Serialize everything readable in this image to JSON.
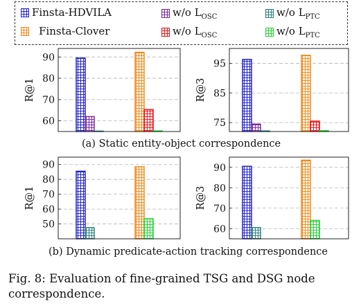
{
  "legend": {
    "items": [
      {
        "label": "Finsta-HDVILA",
        "sub": "",
        "color": "#2323c8"
      },
      {
        "label": "w/o L",
        "sub": "OSC",
        "color": "#7a2a9c"
      },
      {
        "label": "w/o L",
        "sub": "PTC",
        "color": "#2f7f7f"
      },
      {
        "label": "Finsta-Clover",
        "sub": "",
        "color": "#f08a1c"
      },
      {
        "label": "w/o L",
        "sub": "OSC",
        "color": "#e8141e"
      },
      {
        "label": "w/o L",
        "sub": "PTC",
        "color": "#27d13a"
      }
    ]
  },
  "subcaptions": {
    "a": "(a) Static entity-object correspondence",
    "b": "(b) Dynamic predicate-action tracking correspondence"
  },
  "caption": "Fig. 8: Evaluation of fine-grained TSG and DSG node correspondence.",
  "chart_data": [
    {
      "type": "bar",
      "ylabel": "R@1",
      "ylim": [
        55,
        94
      ],
      "yticks": [
        60,
        70,
        80,
        90
      ],
      "grid": true,
      "groups": [
        {
          "name": "Finsta-HDVILA",
          "values": [
            89.5,
            62,
            55.2
          ],
          "series": [
            "Finsta-HDVILA",
            "w/o L_OSC",
            "w/o L_PTC"
          ],
          "colors": [
            "#2323c8",
            "#7a2a9c",
            "#2f7f7f"
          ]
        },
        {
          "name": "Finsta-Clover",
          "values": [
            92.2,
            65.3,
            55.3
          ],
          "series": [
            "Finsta-Clover",
            "w/o L_OSC",
            "w/o L_PTC"
          ],
          "colors": [
            "#f08a1c",
            "#e8141e",
            "#27d13a"
          ]
        }
      ]
    },
    {
      "type": "bar",
      "ylabel": "R@3",
      "ylim": [
        72,
        100
      ],
      "yticks": [
        75,
        85,
        95
      ],
      "grid": true,
      "groups": [
        {
          "name": "Finsta-HDVILA",
          "values": [
            96.3,
            74.5,
            72.2
          ],
          "series": [
            "Finsta-HDVILA",
            "w/o L_OSC",
            "w/o L_PTC"
          ],
          "colors": [
            "#2323c8",
            "#7a2a9c",
            "#2f7f7f"
          ]
        },
        {
          "name": "Finsta-Clover",
          "values": [
            97.7,
            75.5,
            72.3
          ],
          "series": [
            "Finsta-Clover",
            "w/o L_OSC",
            "w/o L_PTC"
          ],
          "colors": [
            "#f08a1c",
            "#e8141e",
            "#27d13a"
          ]
        }
      ]
    },
    {
      "type": "bar",
      "ylabel": "R@1",
      "ylim": [
        40,
        95
      ],
      "yticks": [
        50,
        60,
        70,
        80,
        90
      ],
      "grid": true,
      "groups": [
        {
          "name": "Finsta-HDVILA",
          "values": [
            85.5,
            47.5
          ],
          "series": [
            "Finsta-HDVILA",
            "w/o L_PTC"
          ],
          "colors": [
            "#2323c8",
            "#2f7f7f"
          ]
        },
        {
          "name": "Finsta-Clover",
          "values": [
            88.5,
            53.5
          ],
          "series": [
            "Finsta-Clover",
            "w/o L_PTC"
          ],
          "colors": [
            "#f08a1c",
            "#27d13a"
          ]
        }
      ]
    },
    {
      "type": "bar",
      "ylabel": "R@3",
      "ylim": [
        55,
        95
      ],
      "yticks": [
        60,
        70,
        80,
        90
      ],
      "grid": true,
      "groups": [
        {
          "name": "Finsta-HDVILA",
          "values": [
            90.5,
            60.5
          ],
          "series": [
            "Finsta-HDVILA",
            "w/o L_PTC"
          ],
          "colors": [
            "#2323c8",
            "#2f7f7f"
          ]
        },
        {
          "name": "Finsta-Clover",
          "values": [
            93.5,
            64
          ],
          "series": [
            "Finsta-Clover",
            "w/o L_PTC"
          ],
          "colors": [
            "#f08a1c",
            "#27d13a"
          ]
        }
      ]
    }
  ]
}
